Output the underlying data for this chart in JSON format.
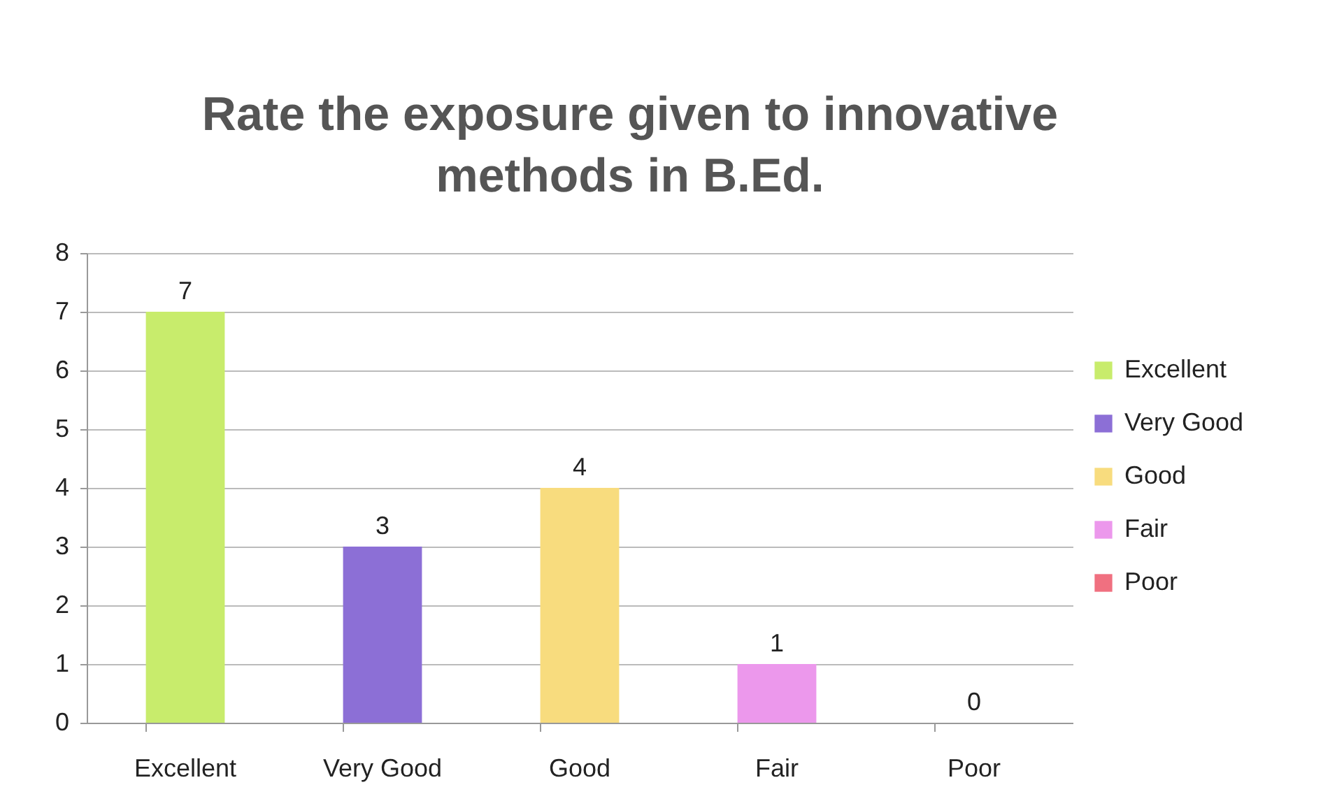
{
  "chart_data": {
    "type": "bar",
    "title": "Rate the exposure given to innovative methods in B.Ed.",
    "categories": [
      "Excellent",
      "Very Good",
      "Good",
      "Fair",
      "Poor"
    ],
    "series": [
      {
        "name": "Excellent",
        "color": "#c8ec6c",
        "values": [
          7,
          null,
          null,
          null,
          null
        ]
      },
      {
        "name": "Very Good",
        "color": "#8c6fd6",
        "values": [
          null,
          3,
          null,
          null,
          null
        ]
      },
      {
        "name": "Good",
        "color": "#f8dc7e",
        "values": [
          null,
          null,
          4,
          null,
          null
        ]
      },
      {
        "name": "Fair",
        "color": "#ec98ec",
        "values": [
          null,
          null,
          null,
          1,
          null
        ]
      },
      {
        "name": "Poor",
        "color": "#f07080",
        "values": [
          null,
          null,
          null,
          null,
          0
        ]
      }
    ],
    "ylim": [
      0,
      8
    ],
    "yticks": [
      0,
      1,
      2,
      3,
      4,
      5,
      6,
      7,
      8
    ],
    "grid": "y",
    "legend": "right",
    "data_labels": true
  }
}
